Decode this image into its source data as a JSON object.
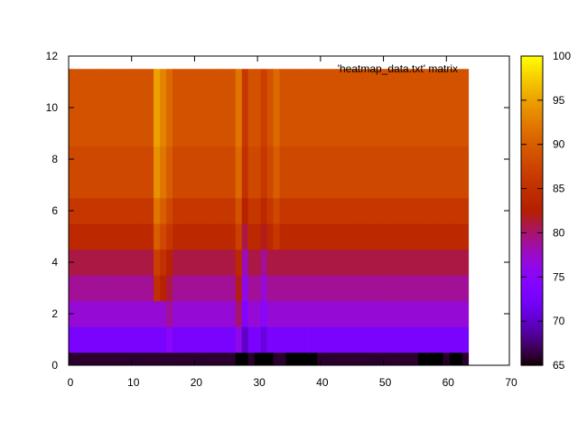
{
  "chart_data": {
    "type": "heatmap",
    "legend_entry": "'heatmap_data.txt' matrix",
    "legend_position": "top-right",
    "xlim": [
      0,
      70
    ],
    "ylim": [
      0,
      12
    ],
    "x_ticks": [
      0,
      10,
      20,
      30,
      40,
      50,
      60,
      70
    ],
    "y_ticks": [
      0,
      2,
      4,
      6,
      8,
      10,
      12
    ],
    "colorbar": {
      "range": [
        65,
        100
      ],
      "ticks": [
        65,
        70,
        75,
        80,
        85,
        90,
        95,
        100
      ],
      "palette": "gnuplot rgbformulae 7,5,15 (black-purple-red-orange-yellow)"
    },
    "matrix_size": {
      "columns": 64,
      "rows": 12
    },
    "row_base_values": [
      66,
      73,
      77,
      79,
      81,
      84,
      86,
      88,
      88,
      89,
      89,
      89
    ],
    "column_anomalies": {
      "14": {
        "offset": 6,
        "rows_from": 3
      },
      "15": {
        "offset": 4,
        "rows_from": 3
      },
      "16": {
        "offset": 2,
        "rows_from": 1
      },
      "27": {
        "offset": 3,
        "rows_from": 1
      },
      "28": {
        "offset": -3,
        "rows_from": 0
      },
      "31": {
        "offset": -2,
        "rows_from": 0
      },
      "33": {
        "offset": 2,
        "rows_from": 5
      }
    },
    "zero_row_black_columns": [
      27,
      30,
      31,
      32,
      35,
      36,
      37,
      38,
      39,
      56,
      57,
      58,
      59,
      61,
      62
    ]
  }
}
